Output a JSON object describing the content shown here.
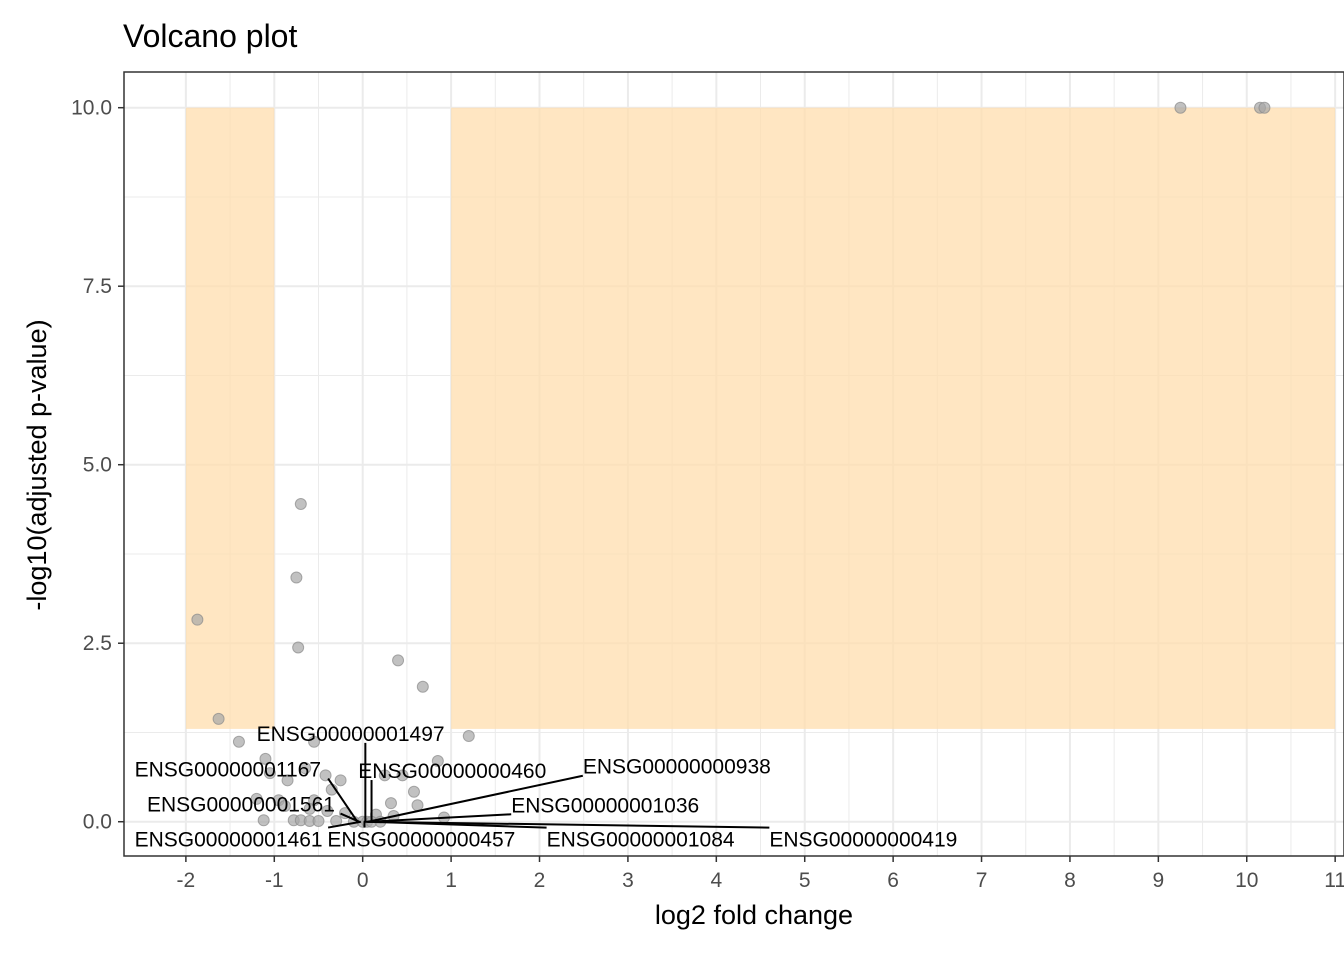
{
  "chart_data": {
    "type": "scatter",
    "title": "Volcano plot",
    "xlabel": "log2 fold change",
    "ylabel": "-log10(adjusted p-value)",
    "xlim": [
      -2.7,
      11.1
    ],
    "ylim": [
      -0.48,
      10.5
    ],
    "x_ticks": [
      -2,
      -1,
      0,
      1,
      2,
      3,
      4,
      5,
      6,
      7,
      8,
      9,
      10,
      11
    ],
    "x_tick_labels": [
      "-2",
      "-1",
      "0",
      "1",
      "2",
      "3",
      "4",
      "5",
      "6",
      "7",
      "8",
      "9",
      "10",
      "11"
    ],
    "y_ticks": [
      0,
      2.5,
      5,
      7.5,
      10
    ],
    "y_tick_labels": [
      "0.0",
      "2.5",
      "5.0",
      "7.5",
      "10.0"
    ],
    "grid": true,
    "legend": "none",
    "colors": {
      "point": "#a6a6a6",
      "point_stroke": "#8a8a8a",
      "highlight": "#ffdeae",
      "grid": "#ebebeb",
      "panel_border": "#333333"
    },
    "highlight_regions": [
      {
        "x": [
          -2,
          -1
        ],
        "y": [
          1.3,
          10
        ]
      },
      {
        "x": [
          1,
          11
        ],
        "y": [
          1.3,
          10
        ]
      }
    ],
    "points": [
      {
        "x": 9.25,
        "y": 10.0
      },
      {
        "x": 10.15,
        "y": 10.0
      },
      {
        "x": 10.2,
        "y": 10.0
      },
      {
        "x": -0.7,
        "y": 4.45
      },
      {
        "x": -0.75,
        "y": 3.42
      },
      {
        "x": -1.87,
        "y": 2.83
      },
      {
        "x": -0.73,
        "y": 2.44
      },
      {
        "x": 0.4,
        "y": 2.26
      },
      {
        "x": 0.68,
        "y": 1.89
      },
      {
        "x": -1.63,
        "y": 1.44
      },
      {
        "x": 1.2,
        "y": 1.2
      },
      {
        "x": -1.4,
        "y": 1.12
      },
      {
        "x": -0.55,
        "y": 1.12
      },
      {
        "x": -1.1,
        "y": 0.88
      },
      {
        "x": -0.65,
        "y": 0.75
      },
      {
        "x": 0.85,
        "y": 0.85
      },
      {
        "x": -1.05,
        "y": 0.68
      },
      {
        "x": -0.42,
        "y": 0.65
      },
      {
        "x": 0.25,
        "y": 0.65
      },
      {
        "x": 0.45,
        "y": 0.65
      },
      {
        "x": -0.85,
        "y": 0.58
      },
      {
        "x": -0.25,
        "y": 0.58
      },
      {
        "x": -0.35,
        "y": 0.45
      },
      {
        "x": 0.58,
        "y": 0.42
      },
      {
        "x": -1.2,
        "y": 0.32
      },
      {
        "x": -0.95,
        "y": 0.3
      },
      {
        "x": -0.55,
        "y": 0.3
      },
      {
        "x": 0.32,
        "y": 0.26
      },
      {
        "x": 0.62,
        "y": 0.23
      },
      {
        "x": -0.88,
        "y": 0.22
      },
      {
        "x": -0.6,
        "y": 0.18
      },
      {
        "x": -0.4,
        "y": 0.15
      },
      {
        "x": -0.2,
        "y": 0.12
      },
      {
        "x": 0.15,
        "y": 0.1
      },
      {
        "x": 0.35,
        "y": 0.08
      },
      {
        "x": 0.92,
        "y": 0.06
      },
      {
        "x": -1.12,
        "y": 0.02
      },
      {
        "x": -0.78,
        "y": 0.02
      },
      {
        "x": -0.7,
        "y": 0.02
      },
      {
        "x": -0.6,
        "y": 0.01
      },
      {
        "x": -0.5,
        "y": 0.01
      },
      {
        "x": -0.3,
        "y": 0.01
      },
      {
        "x": -0.1,
        "y": 0.0
      },
      {
        "x": 0.0,
        "y": 0.0
      },
      {
        "x": 0.05,
        "y": 0.0
      },
      {
        "x": 0.1,
        "y": 0.0
      },
      {
        "x": 0.2,
        "y": 0.0
      }
    ],
    "annotations": [
      {
        "text": "ENSG00000001497",
        "x": 0.03,
        "y": 0.0,
        "label_x": -1.2,
        "label_y": 1.23
      },
      {
        "text": "ENSG00000001167",
        "x": -0.06,
        "y": 0.0,
        "label_x": -2.58,
        "label_y": 0.73
      },
      {
        "text": "ENSG00000000460",
        "x": 0.1,
        "y": 0.0,
        "label_x": -0.05,
        "label_y": 0.71
      },
      {
        "text": "ENSG00000000938",
        "x": 0.06,
        "y": 0.0,
        "label_x": 2.49,
        "label_y": 0.77
      },
      {
        "text": "ENSG00000001561",
        "x": -0.04,
        "y": 0.0,
        "label_x": -2.44,
        "label_y": 0.24
      },
      {
        "text": "ENSG00000001036",
        "x": 0.08,
        "y": 0.0,
        "label_x": 1.68,
        "label_y": 0.23
      },
      {
        "text": "ENSG00000001461",
        "x": -0.02,
        "y": 0.0,
        "label_x": -2.58,
        "label_y": -0.25
      },
      {
        "text": "ENSG00000000457",
        "x": 0.02,
        "y": 0.0,
        "label_x": -0.4,
        "label_y": -0.25
      },
      {
        "text": "ENSG00000001084",
        "x": 0.05,
        "y": 0.0,
        "label_x": 2.08,
        "label_y": -0.25
      },
      {
        "text": "ENSG00000000419",
        "x": 0.01,
        "y": 0.0,
        "label_x": 4.6,
        "label_y": -0.25
      }
    ]
  }
}
